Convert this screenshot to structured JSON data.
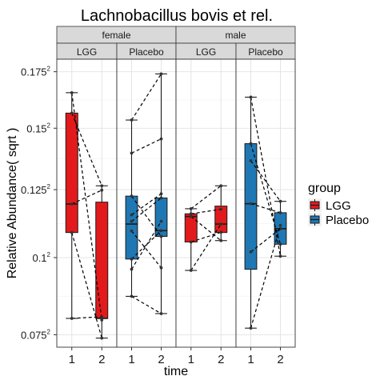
{
  "chart_data": {
    "type": "box",
    "title": "Lachnobacillus bovis et rel.",
    "xlabel": "time",
    "ylabel": "Relative Abundance( sqrt )",
    "x_categories": [
      "1",
      "2"
    ],
    "y_scale": "sqrt",
    "y_ticks": [
      {
        "value": 0.075,
        "label": "0.075"
      },
      {
        "value": 0.1,
        "label": "0.1"
      },
      {
        "value": 0.125,
        "label": "0.125"
      },
      {
        "value": 0.15,
        "label": "0.15"
      },
      {
        "value": 0.175,
        "label": "0.175"
      }
    ],
    "ylim": [
      0.0713,
      0.1808
    ],
    "facet_rows": [
      "female",
      "male"
    ],
    "legend": {
      "title": "group",
      "position": "right",
      "items": [
        {
          "name": "LGG",
          "color": "#e31a1c"
        },
        {
          "name": "Placebo",
          "color": "#1f78b4"
        }
      ]
    },
    "panels": [
      {
        "sex": "female",
        "group": "LGG",
        "color": "#e31a1c",
        "boxes": [
          {
            "time": "1",
            "q1": 0.1089,
            "median": 0.1195,
            "q3": 0.1565,
            "lower": 0.08,
            "upper": 0.1655
          },
          {
            "time": "2",
            "q1": 0.08,
            "median": 0.08,
            "q3": 0.1202,
            "lower": 0.074,
            "upper": 0.1265
          }
        ],
        "pairs": [
          [
            0.1655,
            0.0795
          ],
          [
            0.1565,
            0.1265
          ],
          [
            0.1195,
            0.1248
          ],
          [
            0.1089,
            0.074
          ],
          [
            0.08,
            0.0805
          ]
        ]
      },
      {
        "sex": "female",
        "group": "Placebo",
        "color": "#1f78b4",
        "boxes": [
          {
            "time": "1",
            "q1": 0.0995,
            "median": 0.112,
            "q3": 0.1225,
            "lower": 0.087,
            "upper": 0.1535
          },
          {
            "time": "2",
            "q1": 0.1075,
            "median": 0.1096,
            "q3": 0.1218,
            "lower": 0.0815,
            "upper": 0.174
          }
        ],
        "pairs": [
          [
            0.1535,
            0.174
          ],
          [
            0.1396,
            0.1455
          ],
          [
            0.1225,
            0.1075
          ],
          [
            0.1154,
            0.1234
          ],
          [
            0.113,
            0.1218
          ],
          [
            0.1095,
            0.0965
          ],
          [
            0.0995,
            0.1096
          ],
          [
            0.096,
            0.113
          ],
          [
            0.087,
            0.0815
          ]
        ]
      },
      {
        "sex": "male",
        "group": "LGG",
        "color": "#e31a1c",
        "boxes": [
          {
            "time": "1",
            "q1": 0.1055,
            "median": 0.1148,
            "q3": 0.1158,
            "lower": 0.0956,
            "upper": 0.1177
          },
          {
            "time": "2",
            "q1": 0.1089,
            "median": 0.112,
            "q3": 0.1187,
            "lower": 0.106,
            "upper": 0.1265
          }
        ],
        "pairs": [
          [
            0.1177,
            0.1265
          ],
          [
            0.1158,
            0.1175
          ],
          [
            0.1148,
            0.106
          ],
          [
            0.1055,
            0.109
          ],
          [
            0.0956,
            0.112
          ]
        ]
      },
      {
        "sex": "male",
        "group": "Placebo",
        "color": "#1f78b4",
        "boxes": [
          {
            "time": "1",
            "q1": 0.096,
            "median": 0.1196,
            "q3": 0.1435,
            "lower": 0.077,
            "upper": 0.1635
          },
          {
            "time": "2",
            "q1": 0.1047,
            "median": 0.1103,
            "q3": 0.1162,
            "lower": 0.1005,
            "upper": 0.1205
          }
        ],
        "pairs": [
          [
            0.1635,
            0.1005
          ],
          [
            0.1435,
            0.1047
          ],
          [
            0.1365,
            0.1205
          ],
          [
            0.1196,
            0.1162
          ],
          [
            0.102,
            0.1103
          ],
          [
            0.077,
            0.1115
          ]
        ]
      }
    ]
  }
}
